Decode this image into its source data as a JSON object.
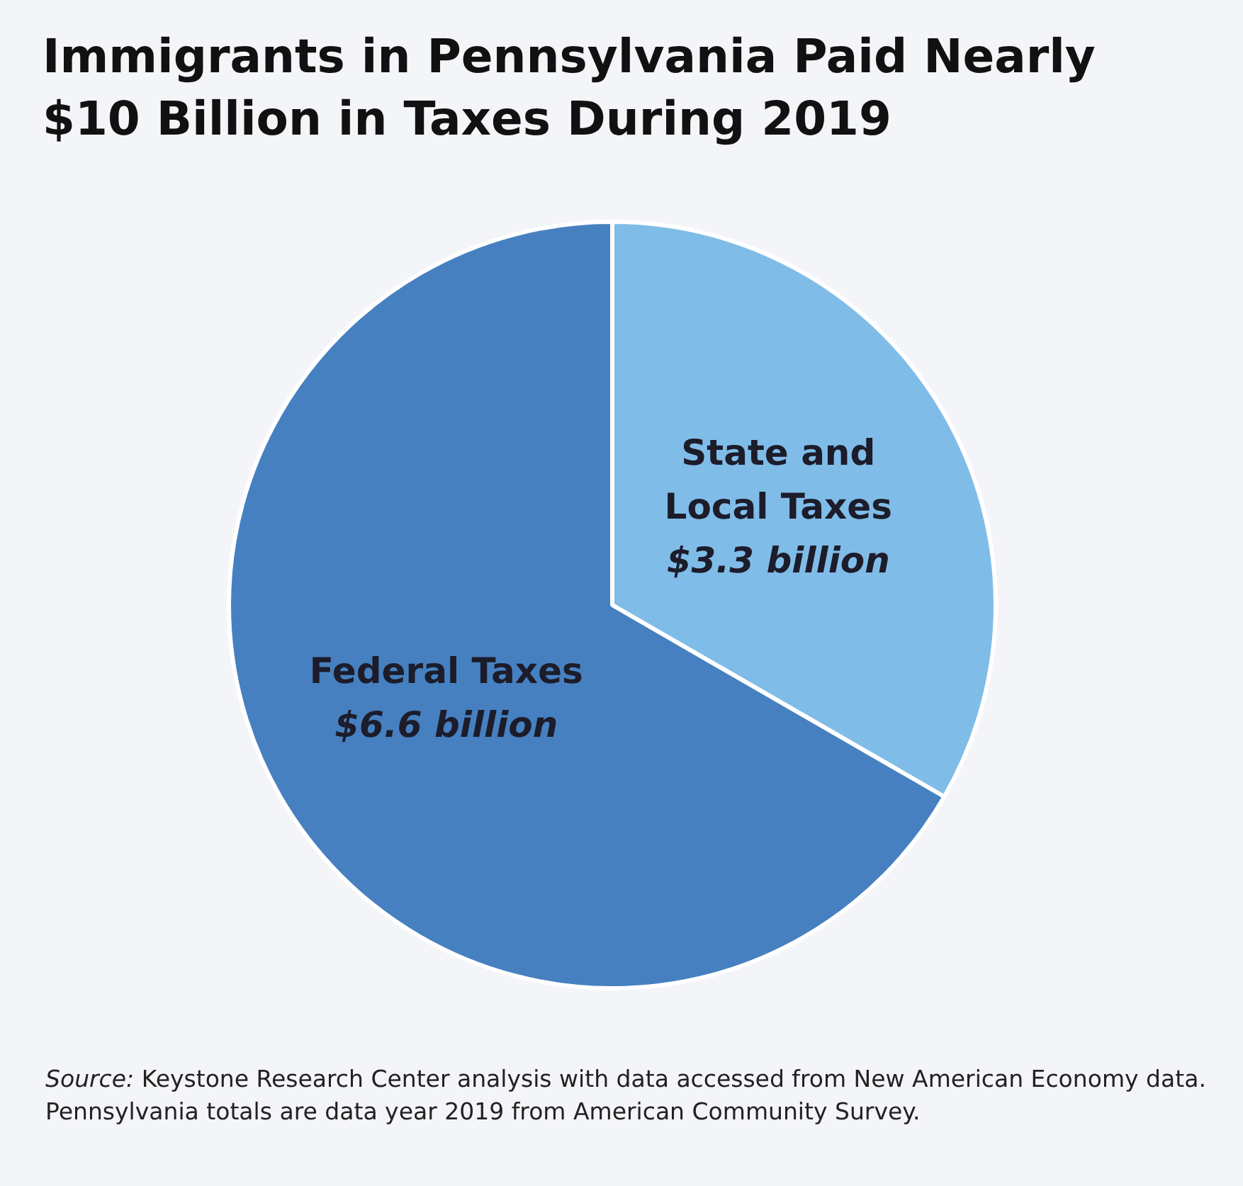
{
  "chart_data": {
    "type": "pie",
    "title": "Immigrants in Pennsylvania Paid Nearly $10 Billion in Taxes During 2019",
    "categories": [
      "State and Local Taxes",
      "Federal Taxes"
    ],
    "values": [
      3.3,
      6.6
    ],
    "colors": [
      "#80bce8",
      "#4680c0"
    ],
    "value_labels": [
      "$3.3 billion",
      "$6.6 billion"
    ],
    "legend": false,
    "annotations": [
      "Source: Keystone Research Center analysis with data accessed from New American Economy data. Pennsylvania totals are data year 2019 from American Community Survey."
    ]
  }
}
